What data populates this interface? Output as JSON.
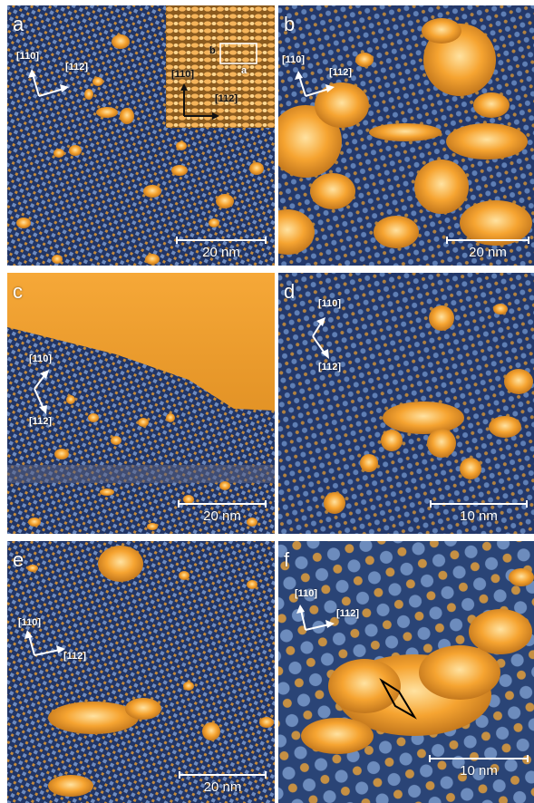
{
  "panels": {
    "a": {
      "label": "a",
      "dir1": "[110]",
      "dir2": "[112]",
      "scale": "20 nm",
      "inset": {
        "dir1": "[110]",
        "dir2": "[112]",
        "cell_b": "b",
        "cell_a": "a"
      }
    },
    "b": {
      "label": "b",
      "dir1": "[110]",
      "dir2": "[112]",
      "scale": "20 nm"
    },
    "c": {
      "label": "c",
      "dir1": "[110]",
      "dir2": "[112]",
      "scale": "20 nm"
    },
    "d": {
      "label": "d",
      "dir1": "[110]",
      "dir2": "[112]",
      "scale": "10 nm"
    },
    "e": {
      "label": "e",
      "dir1": "[110]",
      "dir2": "[112]",
      "scale": "20 nm"
    },
    "f": {
      "label": "f",
      "dir1": "[110]",
      "dir2": "[112]",
      "scale": "10 nm"
    }
  },
  "colors": {
    "dark": "#1e2c55",
    "mid": "#3d5a8c",
    "light": "#7f9ac2",
    "island": "#f5a22a",
    "island_hi": "#ffd98a"
  }
}
